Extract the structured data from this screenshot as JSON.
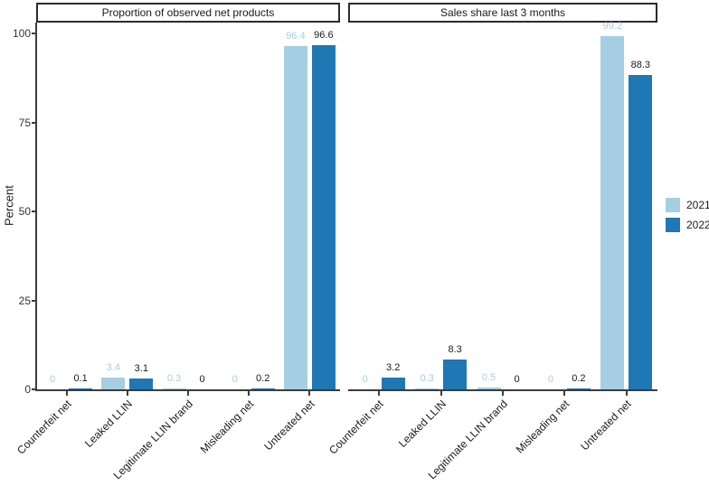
{
  "chart_data": {
    "type": "bar",
    "ylabel": "Percent",
    "ylim": [
      0,
      100
    ],
    "yticks": [
      0,
      25,
      50,
      75,
      100
    ],
    "grid": "off",
    "legend_position": "right",
    "categories": [
      "Counterfeit net",
      "Leaked LLIN",
      "Legitimate LLIN brand",
      "Misleading net",
      "Untreated net"
    ],
    "facets": [
      {
        "title": "Proportion of observed net products",
        "series": [
          {
            "name": "2021",
            "values": [
              0,
              3.4,
              0.3,
              0,
              96.4
            ]
          },
          {
            "name": "2022",
            "values": [
              0.1,
              3.1,
              0,
              0.2,
              96.6
            ]
          }
        ]
      },
      {
        "title": "Sales share last 3 months",
        "series": [
          {
            "name": "2021",
            "values": [
              0,
              0.3,
              0.5,
              0,
              99.2
            ]
          },
          {
            "name": "2022",
            "values": [
              3.2,
              8.3,
              0,
              0.2,
              88.3
            ]
          }
        ]
      }
    ],
    "legend": [
      {
        "label": "2021",
        "color": "#A6CEE3"
      },
      {
        "label": "2022",
        "color": "#1F78B4"
      }
    ],
    "value_label_colors": {
      "2021": "#A6CEE3",
      "2022": "#1a1a1a"
    }
  }
}
